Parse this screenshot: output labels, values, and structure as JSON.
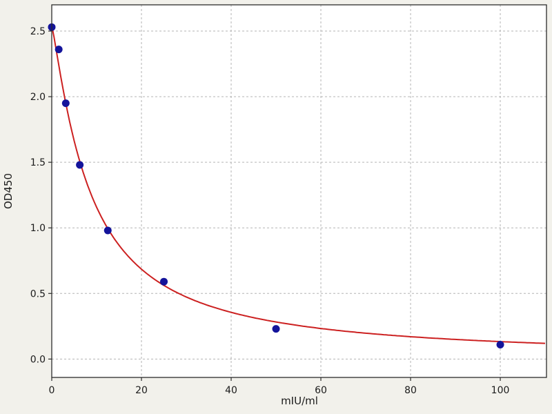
{
  "figure": {
    "background": "#f2f1eb",
    "plot_background": "#ffffff",
    "grid_color": "#b3b3b3",
    "spine_color": "#2b2b2b",
    "tick_color": "#2b2b2b",
    "text_color": "#1a1a1a"
  },
  "chart_data": {
    "type": "scatter",
    "title": "",
    "xlabel": "mIU/ml",
    "ylabel": "OD450",
    "xlim": [
      0,
      110.3
    ],
    "ylim": [
      -0.14,
      2.7
    ],
    "grid": true,
    "legend": "none",
    "x_ticks": [
      0,
      20,
      40,
      60,
      80,
      100
    ],
    "x_tick_labels": [
      "0",
      "20",
      "40",
      "60",
      "80",
      "100"
    ],
    "y_ticks": [
      0.0,
      0.5,
      1.0,
      1.5,
      2.0,
      2.5
    ],
    "y_tick_labels": [
      "0.0",
      "0.5",
      "1.0",
      "1.5",
      "2.0",
      "2.5"
    ],
    "points": {
      "name": "standards",
      "x": [
        0,
        1.5625,
        3.125,
        6.25,
        12.5,
        25,
        50,
        100
      ],
      "y": [
        2.53,
        2.36,
        1.95,
        1.48,
        0.98,
        0.59,
        0.23,
        0.11
      ],
      "color": "#14149b",
      "marker": "circle",
      "marker_radius": 5.5
    },
    "fit_curve": {
      "name": "4PL standard curve fit",
      "type": "4PL",
      "params": {
        "a": 2.54,
        "b": 1.18,
        "c": 8.6,
        "d": 0.0
      },
      "color": "#cc2020",
      "stroke_width": 2
    }
  }
}
